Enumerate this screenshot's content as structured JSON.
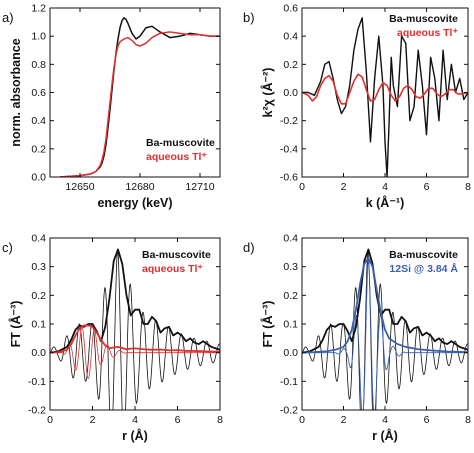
{
  "colors": {
    "black": "#111111",
    "red": "#e03030",
    "blue": "#3a5fb0"
  },
  "chart_data": [
    {
      "type": "line",
      "panel_label": "a)",
      "xlabel": "energy (keV)",
      "ylabel": "norm. absorbance",
      "xlim": [
        12635,
        12720
      ],
      "ylim": [
        0.0,
        1.2
      ],
      "xticks": [
        12650,
        12680,
        12710
      ],
      "yticks": [
        0.0,
        0.2,
        0.4,
        0.6,
        0.8,
        1.0,
        1.2
      ],
      "ytick_labels": [
        "0.0",
        "0.2",
        "0.4",
        "0.6",
        "0.8",
        "1.0",
        "1.2"
      ],
      "series": [
        {
          "name": "Ba-muscovite",
          "color": "#111111",
          "width": 1.5,
          "x": [
            12640,
            12650,
            12655,
            12658,
            12660,
            12661,
            12662,
            12663,
            12664,
            12665,
            12666,
            12667,
            12668,
            12669,
            12670,
            12671,
            12672,
            12673,
            12674,
            12676,
            12678,
            12680,
            12683,
            12686,
            12690,
            12695,
            12700,
            12705,
            12710,
            12715,
            12720
          ],
          "y": [
            0.0,
            0.01,
            0.02,
            0.04,
            0.07,
            0.1,
            0.15,
            0.23,
            0.35,
            0.48,
            0.62,
            0.76,
            0.88,
            0.98,
            1.06,
            1.11,
            1.13,
            1.12,
            1.09,
            1.02,
            0.98,
            1.0,
            1.06,
            1.07,
            1.03,
            0.99,
            1.0,
            1.02,
            1.01,
            1.0,
            1.0
          ]
        },
        {
          "name": "aqueous Tl⁺",
          "color": "#e03030",
          "width": 1.5,
          "x": [
            12640,
            12650,
            12655,
            12658,
            12660,
            12661,
            12662,
            12663,
            12664,
            12665,
            12666,
            12667,
            12668,
            12669,
            12670,
            12672,
            12674,
            12676,
            12678,
            12680,
            12683,
            12686,
            12690,
            12695,
            12700,
            12705,
            12710,
            12715,
            12720
          ],
          "y": [
            0.0,
            0.01,
            0.02,
            0.04,
            0.08,
            0.12,
            0.18,
            0.27,
            0.4,
            0.53,
            0.66,
            0.78,
            0.87,
            0.93,
            0.96,
            0.98,
            0.99,
            0.97,
            0.94,
            0.93,
            0.95,
            0.99,
            1.02,
            1.03,
            1.02,
            1.01,
            1.01,
            1.0,
            1.0
          ]
        }
      ]
    },
    {
      "type": "line",
      "panel_label": "b)",
      "xlabel": "k (Å⁻¹)",
      "ylabel": "k²χ (Å⁻²)",
      "xlim": [
        0,
        8
      ],
      "ylim": [
        -0.6,
        0.6
      ],
      "xticks": [
        0,
        2,
        4,
        6,
        8
      ],
      "yticks": [
        -0.6,
        -0.4,
        -0.2,
        0.0,
        0.2,
        0.4,
        0.6
      ],
      "ytick_labels": [
        "-0.6",
        "-0.4",
        "-0.2",
        "0.0",
        "0.2",
        "0.4",
        "0.6"
      ],
      "series": [
        {
          "name": "Ba-muscovite",
          "color": "#111111",
          "width": 1.4,
          "x": [
            0,
            0.3,
            0.6,
            0.9,
            1.1,
            1.3,
            1.5,
            1.7,
            1.9,
            2.1,
            2.3,
            2.5,
            2.7,
            2.9,
            3.1,
            3.3,
            3.5,
            3.7,
            3.9,
            4.0,
            4.1,
            4.2,
            4.3,
            4.4,
            4.6,
            4.8,
            5.0,
            5.2,
            5.4,
            5.6,
            5.8,
            6.0,
            6.2,
            6.4,
            6.6,
            6.8,
            7.0,
            7.2,
            7.4,
            7.6,
            7.8,
            8.0
          ],
          "y": [
            0,
            0.0,
            -0.02,
            0.08,
            0.2,
            0.22,
            0.1,
            -0.05,
            -0.15,
            -0.1,
            0.05,
            0.3,
            0.45,
            0.53,
            0.15,
            -0.35,
            0.1,
            0.4,
            0.05,
            -0.35,
            -0.6,
            -0.2,
            0.25,
            0.05,
            -0.1,
            0.4,
            0.35,
            -0.2,
            -0.1,
            0.3,
            0.05,
            -0.3,
            0.25,
            0.1,
            -0.2,
            0.3,
            -0.05,
            0.2,
            0.0,
            0.1,
            -0.05,
            0.0
          ]
        },
        {
          "name": "aqueous Tl⁺",
          "color": "#e03030",
          "width": 1.6,
          "x": [
            0,
            0.3,
            0.5,
            0.7,
            0.9,
            1.1,
            1.3,
            1.5,
            1.7,
            1.9,
            2.1,
            2.3,
            2.5,
            2.7,
            2.9,
            3.1,
            3.3,
            3.5,
            3.7,
            3.9,
            4.1,
            4.3,
            4.5,
            4.7,
            4.9,
            5.1,
            5.3,
            5.5,
            5.7,
            5.9,
            6.1,
            6.3,
            6.5,
            6.7,
            6.9,
            7.1,
            7.3,
            7.5,
            7.7,
            8.0
          ],
          "y": [
            0.0,
            -0.02,
            -0.06,
            -0.03,
            0.05,
            0.1,
            0.12,
            0.08,
            -0.02,
            -0.08,
            -0.08,
            0.0,
            0.08,
            0.13,
            0.11,
            0.02,
            -0.06,
            -0.05,
            0.02,
            0.07,
            0.05,
            -0.02,
            -0.06,
            -0.03,
            0.03,
            0.05,
            0.02,
            -0.03,
            -0.04,
            -0.01,
            0.03,
            0.03,
            -0.01,
            -0.03,
            -0.01,
            0.02,
            0.02,
            -0.01,
            -0.01,
            0.0
          ]
        }
      ]
    },
    {
      "type": "line",
      "panel_label": "c)",
      "xlabel": "r (Å)",
      "ylabel": "FT (Å⁻³)",
      "xlim": [
        0,
        8
      ],
      "ylim": [
        -0.2,
        0.4
      ],
      "xticks": [
        0,
        2,
        4,
        6,
        8
      ],
      "yticks": [
        -0.2,
        -0.1,
        0.0,
        0.1,
        0.2,
        0.3,
        0.4
      ],
      "ytick_labels": [
        "-0.2",
        "-0.1",
        "0.0",
        "0.1",
        "0.2",
        "0.3",
        "0.4"
      ],
      "series": [
        {
          "name": "Ba-muscovite",
          "color": "#111111",
          "width": 1.8,
          "x": [
            0,
            0.4,
            0.8,
            1.0,
            1.2,
            1.4,
            1.6,
            1.8,
            2.0,
            2.2,
            2.4,
            2.6,
            2.8,
            3.0,
            3.2,
            3.4,
            3.6,
            3.8,
            4.0,
            4.2,
            4.4,
            4.6,
            4.8,
            5.0,
            5.2,
            5.4,
            5.6,
            5.8,
            6.0,
            6.2,
            6.4,
            6.6,
            6.8,
            7.0,
            7.2,
            7.4,
            7.6,
            7.8,
            8.0
          ],
          "y": [
            0.0,
            0.005,
            0.02,
            0.045,
            0.08,
            0.095,
            0.09,
            0.1,
            0.1,
            0.075,
            0.04,
            0.09,
            0.19,
            0.32,
            0.36,
            0.31,
            0.2,
            0.13,
            0.15,
            0.15,
            0.1,
            0.1,
            0.125,
            0.11,
            0.07,
            0.085,
            0.09,
            0.06,
            0.07,
            0.06,
            0.04,
            0.05,
            0.035,
            0.03,
            0.04,
            0.03,
            0.02,
            0.015,
            0.01
          ]
        },
        {
          "name": "aqueous Tl⁺",
          "color": "#e03030",
          "width": 1.8,
          "x": [
            0,
            0.4,
            0.8,
            1.0,
            1.2,
            1.4,
            1.6,
            1.8,
            2.0,
            2.2,
            2.4,
            2.6,
            2.8,
            3.0,
            3.2,
            3.4,
            3.6,
            3.8,
            4.0,
            4.4,
            4.8,
            5.2,
            5.6,
            6.0,
            6.4,
            6.8,
            7.2,
            7.6,
            8.0
          ],
          "y": [
            0.0,
            0.002,
            0.01,
            0.03,
            0.06,
            0.085,
            0.095,
            0.095,
            0.09,
            0.07,
            0.045,
            0.025,
            0.015,
            0.018,
            0.02,
            0.016,
            0.012,
            0.014,
            0.015,
            0.012,
            0.01,
            0.011,
            0.008,
            0.009,
            0.006,
            0.006,
            0.005,
            0.004,
            0.003
          ]
        }
      ],
      "oscillating_components": [
        {
          "name": "",
          "color": "#111111",
          "width": 0.8,
          "amplitude": [
            0.02,
            0.1,
            0.1,
            0.36,
            0.15,
            0.12,
            0.09,
            0.07,
            0.05,
            0.04,
            0.03
          ],
          "amp_x": [
            0.4,
            1.2,
            2.0,
            3.2,
            4.2,
            4.8,
            5.6,
            6.0,
            6.8,
            7.4,
            8.0
          ],
          "period": 0.6,
          "phase": 0.18
        },
        {
          "name": "",
          "color": "#e03030",
          "width": 0.8,
          "amplitude": [
            0.0,
            0.09,
            0.09,
            0.04,
            0.015,
            0.0
          ],
          "amp_x": [
            0.6,
            1.5,
            2.0,
            2.4,
            3.0,
            3.6
          ],
          "period": 0.6,
          "phase": 0.3
        }
      ]
    },
    {
      "type": "line",
      "panel_label": "d)",
      "xlabel": "r (Å)",
      "ylabel": "FT (Å⁻³)",
      "xlim": [
        0,
        8
      ],
      "ylim": [
        -0.2,
        0.4
      ],
      "xticks": [
        0,
        2,
        4,
        6,
        8
      ],
      "yticks": [
        -0.2,
        -0.1,
        0.0,
        0.1,
        0.2,
        0.3,
        0.4
      ],
      "ytick_labels": [
        "-0.2",
        "-0.1",
        "0.0",
        "0.1",
        "0.2",
        "0.3",
        "0.4"
      ],
      "series": [
        {
          "name": "Ba-muscovite",
          "color": "#111111",
          "width": 1.8,
          "x": [
            0,
            0.4,
            0.8,
            1.0,
            1.2,
            1.4,
            1.6,
            1.8,
            2.0,
            2.2,
            2.4,
            2.6,
            2.8,
            3.0,
            3.2,
            3.4,
            3.6,
            3.8,
            4.0,
            4.2,
            4.4,
            4.6,
            4.8,
            5.0,
            5.2,
            5.4,
            5.6,
            5.8,
            6.0,
            6.2,
            6.4,
            6.6,
            6.8,
            7.0,
            7.2,
            7.4,
            7.6,
            7.8,
            8.0
          ],
          "y": [
            0.0,
            0.005,
            0.02,
            0.045,
            0.08,
            0.095,
            0.09,
            0.1,
            0.1,
            0.075,
            0.04,
            0.09,
            0.19,
            0.32,
            0.36,
            0.31,
            0.2,
            0.13,
            0.15,
            0.15,
            0.1,
            0.1,
            0.125,
            0.11,
            0.07,
            0.085,
            0.09,
            0.06,
            0.07,
            0.06,
            0.04,
            0.05,
            0.035,
            0.03,
            0.04,
            0.03,
            0.02,
            0.015,
            0.01
          ]
        },
        {
          "name": "12Si @ 3.84 Å",
          "color": "#3a5fb0",
          "width": 1.8,
          "x": [
            0,
            0.6,
            1.2,
            1.6,
            2.0,
            2.2,
            2.4,
            2.6,
            2.8,
            3.0,
            3.2,
            3.4,
            3.6,
            3.8,
            4.0,
            4.2,
            4.6,
            5.0,
            5.6,
            6.2,
            7.0,
            8.0
          ],
          "y": [
            0.0,
            0.002,
            0.005,
            0.01,
            0.02,
            0.04,
            0.08,
            0.15,
            0.24,
            0.31,
            0.33,
            0.3,
            0.22,
            0.14,
            0.08,
            0.05,
            0.03,
            0.02,
            0.012,
            0.008,
            0.004,
            0.002
          ]
        }
      ],
      "oscillating_components": [
        {
          "name": "",
          "color": "#111111",
          "width": 0.8,
          "amplitude": [
            0.02,
            0.1,
            0.1,
            0.36,
            0.15,
            0.12,
            0.09,
            0.07,
            0.05,
            0.04,
            0.03
          ],
          "amp_x": [
            0.4,
            1.2,
            2.0,
            3.2,
            4.2,
            4.8,
            5.6,
            6.0,
            6.8,
            7.4,
            8.0
          ],
          "period": 0.6,
          "phase": 0.18
        },
        {
          "name": "",
          "color": "#3a5fb0",
          "width": 0.9,
          "amplitude": [
            0.0,
            0.02,
            0.18,
            0.33,
            0.18,
            0.03,
            0.0
          ],
          "amp_x": [
            1.6,
            2.2,
            2.8,
            3.2,
            3.6,
            4.2,
            5.0
          ],
          "period": 0.6,
          "phase": 0.2
        }
      ]
    }
  ],
  "legends": [
    {
      "panel": 0,
      "items": [
        {
          "text": "Ba-muscovite",
          "color": "#111111"
        },
        {
          "text": "aqueous Tl⁺",
          "color": "#e03030"
        }
      ]
    },
    {
      "panel": 1,
      "items": [
        {
          "text": "Ba-muscovite",
          "color": "#111111"
        },
        {
          "text": "aqueous Tl⁺",
          "color": "#e03030"
        }
      ]
    },
    {
      "panel": 2,
      "items": [
        {
          "text": "Ba-muscovite",
          "color": "#111111"
        },
        {
          "text": "aqueous Tl⁺",
          "color": "#e03030"
        }
      ]
    },
    {
      "panel": 3,
      "items": [
        {
          "text": "Ba-muscovite",
          "color": "#111111"
        },
        {
          "text": "12Si @ 3.84 Å",
          "color": "#3a5fb0"
        }
      ]
    }
  ]
}
